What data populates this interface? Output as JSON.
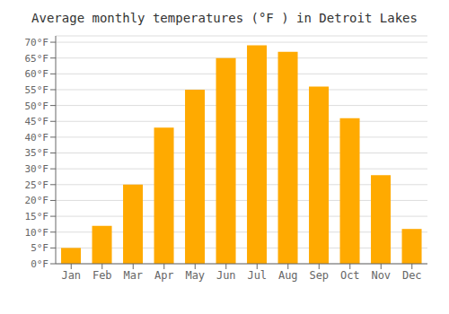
{
  "chart_data": {
    "type": "bar",
    "title": "Average monthly temperatures (°F ) in Detroit Lakes",
    "categories": [
      "Jan",
      "Feb",
      "Mar",
      "Apr",
      "May",
      "Jun",
      "Jul",
      "Aug",
      "Sep",
      "Oct",
      "Nov",
      "Dec"
    ],
    "values": [
      5,
      12,
      25,
      43,
      55,
      65,
      69,
      67,
      56,
      46,
      28,
      11
    ],
    "color": "#FFAA00",
    "ylim": [
      0,
      72
    ],
    "yticks": [
      {
        "value": 0,
        "label": "0°F"
      },
      {
        "value": 5,
        "label": "5°F"
      },
      {
        "value": 10,
        "label": "10°F"
      },
      {
        "value": 15,
        "label": "15°F"
      },
      {
        "value": 20,
        "label": "20°F"
      },
      {
        "value": 25,
        "label": "25°F"
      },
      {
        "value": 30,
        "label": "30°F"
      },
      {
        "value": 35,
        "label": "35°F"
      },
      {
        "value": 40,
        "label": "40°F"
      },
      {
        "value": 45,
        "label": "45°F"
      },
      {
        "value": 50,
        "label": "50°F"
      },
      {
        "value": 55,
        "label": "55°F"
      },
      {
        "value": 60,
        "label": "60°F"
      },
      {
        "value": 65,
        "label": "65°F"
      },
      {
        "value": 70,
        "label": "70°F"
      }
    ],
    "grid": true
  }
}
